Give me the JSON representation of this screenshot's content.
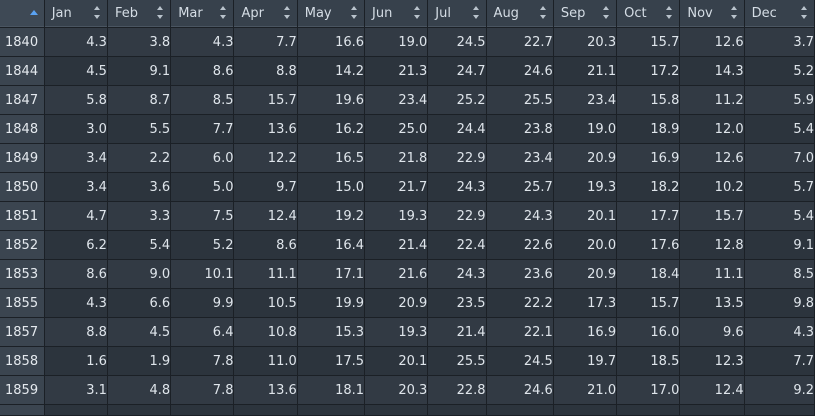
{
  "columns": [
    "Jan",
    "Feb",
    "Mar",
    "Apr",
    "May",
    "Jun",
    "Jul",
    "Aug",
    "Sep",
    "Oct",
    "Nov",
    "Dec"
  ],
  "rows": [
    {
      "year": "1840",
      "values": [
        "4.3",
        "3.8",
        "4.3",
        "7.7",
        "16.6",
        "19.0",
        "24.5",
        "22.7",
        "20.3",
        "15.7",
        "12.6",
        "3.7"
      ]
    },
    {
      "year": "1844",
      "values": [
        "4.5",
        "9.1",
        "8.6",
        "8.8",
        "14.2",
        "21.3",
        "24.7",
        "24.6",
        "21.1",
        "17.2",
        "14.3",
        "5.2"
      ]
    },
    {
      "year": "1847",
      "values": [
        "5.8",
        "8.7",
        "8.5",
        "15.7",
        "19.6",
        "23.4",
        "25.2",
        "25.5",
        "23.4",
        "15.8",
        "11.2",
        "5.9"
      ]
    },
    {
      "year": "1848",
      "values": [
        "3.0",
        "5.5",
        "7.7",
        "13.6",
        "16.2",
        "25.0",
        "24.4",
        "23.8",
        "19.0",
        "18.9",
        "12.0",
        "5.4"
      ]
    },
    {
      "year": "1849",
      "values": [
        "3.4",
        "2.2",
        "6.0",
        "12.2",
        "16.5",
        "21.8",
        "22.9",
        "23.4",
        "20.9",
        "16.9",
        "12.6",
        "7.0"
      ]
    },
    {
      "year": "1850",
      "values": [
        "3.4",
        "3.6",
        "5.0",
        "9.7",
        "15.0",
        "21.7",
        "24.3",
        "25.7",
        "19.3",
        "18.2",
        "10.2",
        "5.7"
      ]
    },
    {
      "year": "1851",
      "values": [
        "4.7",
        "3.3",
        "7.5",
        "12.4",
        "19.2",
        "19.3",
        "22.9",
        "24.3",
        "20.1",
        "17.7",
        "15.7",
        "5.4"
      ]
    },
    {
      "year": "1852",
      "values": [
        "6.2",
        "5.4",
        "5.2",
        "8.6",
        "16.4",
        "21.4",
        "22.4",
        "22.6",
        "20.0",
        "17.6",
        "12.8",
        "9.1"
      ]
    },
    {
      "year": "1853",
      "values": [
        "8.6",
        "9.0",
        "10.1",
        "11.1",
        "17.1",
        "21.6",
        "24.3",
        "23.6",
        "20.9",
        "18.4",
        "11.1",
        "8.5"
      ]
    },
    {
      "year": "1855",
      "values": [
        "4.3",
        "6.6",
        "9.9",
        "10.5",
        "19.9",
        "20.9",
        "23.5",
        "22.2",
        "17.3",
        "15.7",
        "13.5",
        "9.8"
      ]
    },
    {
      "year": "1857",
      "values": [
        "8.8",
        "4.5",
        "6.4",
        "10.8",
        "15.3",
        "19.3",
        "21.4",
        "22.1",
        "16.9",
        "16.0",
        "9.6",
        "4.3"
      ]
    },
    {
      "year": "1858",
      "values": [
        "1.6",
        "1.9",
        "7.8",
        "11.0",
        "17.5",
        "20.1",
        "25.5",
        "24.5",
        "19.7",
        "18.5",
        "12.3",
        "7.7"
      ]
    },
    {
      "year": "1859",
      "values": [
        "3.1",
        "4.8",
        "7.8",
        "13.6",
        "18.1",
        "20.3",
        "22.8",
        "24.6",
        "21.0",
        "17.0",
        "12.4",
        "9.2"
      ]
    }
  ],
  "colors": {
    "background": "#262d35",
    "header": "#37414c",
    "accent": "#5aa2f2"
  },
  "icons": {
    "sort": "sort-updown-icon",
    "ascending": "sort-ascending-icon"
  }
}
